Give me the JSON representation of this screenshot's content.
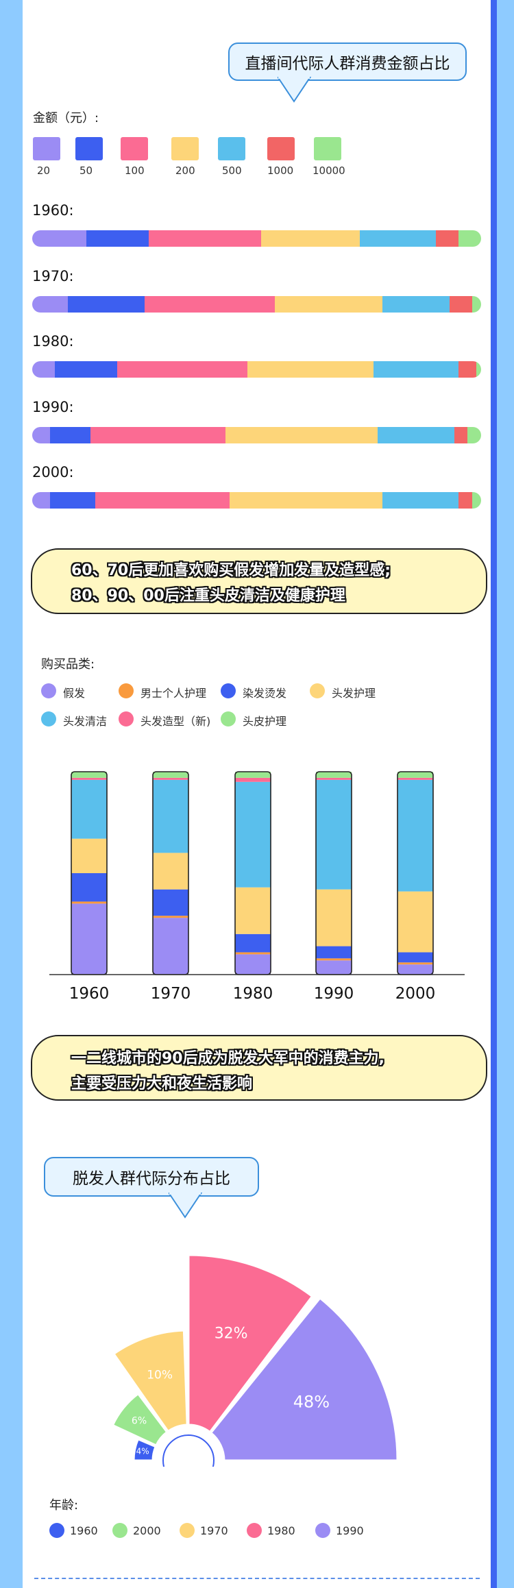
{
  "spend_section": {
    "title": "直播间代际人群消费金额占比",
    "legend_title": "金额（元）:",
    "legend": [
      {
        "label": "20",
        "color": "#9b8cf4"
      },
      {
        "label": "50",
        "color": "#3d5ff0"
      },
      {
        "label": "100",
        "color": "#fb6b93"
      },
      {
        "label": "200",
        "color": "#fdd579"
      },
      {
        "label": "500",
        "color": "#5abfec"
      },
      {
        "label": "1000",
        "color": "#f26565"
      },
      {
        "label": "10000",
        "color": "#9ae68f"
      }
    ]
  },
  "banner1": {
    "line1": "60、70后更加喜欢购买假发增加发量及造型感;",
    "line2": "80、90、00后注重头皮清洁及健康护理"
  },
  "category_section": {
    "legend_title": "购买品类:",
    "legend": [
      {
        "label": "假发",
        "color": "#9b8cf4"
      },
      {
        "label": "男士个人护理",
        "color": "#f99a3d"
      },
      {
        "label": "染发烫发",
        "color": "#3d5ff0"
      },
      {
        "label": "头发护理",
        "color": "#fdd579"
      },
      {
        "label": "头发清洁",
        "color": "#5abfec"
      },
      {
        "label": "头发造型（新)",
        "color": "#fb6b93"
      },
      {
        "label": "头皮护理",
        "color": "#9ae68f"
      }
    ]
  },
  "banner2": {
    "line1": "一二线城市的90后成为脱发大军中的消费主力,",
    "line2": "主要受压力大和夜生活影响"
  },
  "pie_section": {
    "title": "脱发人群代际分布占比",
    "legend_title": "年龄:",
    "legend": [
      {
        "label": "1960",
        "color": "#3d5ff0"
      },
      {
        "label": "2000",
        "color": "#9ae68f"
      },
      {
        "label": "1970",
        "color": "#fdd579"
      },
      {
        "label": "1980",
        "color": "#fb6b93"
      },
      {
        "label": "1990",
        "color": "#9b8cf4"
      }
    ]
  },
  "chart_data": [
    {
      "type": "bar",
      "orientation": "horizontal-stacked-100",
      "title": "直播间代际人群消费金额占比",
      "legend_title": "金额（元）",
      "categories": [
        "1960:",
        "1970:",
        "1980:",
        "1990:",
        "2000:"
      ],
      "series": [
        {
          "name": "20",
          "color": "#9b8cf4",
          "values": [
            12,
            8,
            5,
            4,
            4
          ]
        },
        {
          "name": "50",
          "color": "#3d5ff0",
          "values": [
            14,
            17,
            14,
            9,
            10
          ]
        },
        {
          "name": "100",
          "color": "#fb6b93",
          "values": [
            25,
            29,
            29,
            30,
            30
          ]
        },
        {
          "name": "200",
          "color": "#fdd579",
          "values": [
            22,
            24,
            28,
            34,
            34
          ]
        },
        {
          "name": "500",
          "color": "#5abfec",
          "values": [
            17,
            15,
            19,
            17,
            17
          ]
        },
        {
          "name": "1000",
          "color": "#f26565",
          "values": [
            5,
            5,
            4,
            3,
            3
          ]
        },
        {
          "name": "10000",
          "color": "#9ae68f",
          "values": [
            5,
            2,
            1,
            3,
            2
          ]
        }
      ]
    },
    {
      "type": "bar",
      "orientation": "vertical-stacked-100",
      "legend_title": "购买品类",
      "categories": [
        "1960",
        "1970",
        "1980",
        "1990",
        "2000"
      ],
      "series": [
        {
          "name": "假发",
          "color": "#9b8cf4",
          "values": [
            35,
            28,
            10,
            7,
            5
          ]
        },
        {
          "name": "男士个人护理",
          "color": "#f99a3d",
          "values": [
            1,
            1,
            1,
            1,
            1
          ]
        },
        {
          "name": "染发烫发",
          "color": "#3d5ff0",
          "values": [
            14,
            13,
            9,
            6,
            5
          ]
        },
        {
          "name": "头发护理",
          "color": "#fdd579",
          "values": [
            17,
            18,
            23,
            28,
            30
          ]
        },
        {
          "name": "头发清洁",
          "color": "#5abfec",
          "values": [
            29,
            36,
            52,
            54,
            55
          ]
        },
        {
          "name": "头发造型（新)",
          "color": "#fb6b93",
          "values": [
            1,
            1,
            2,
            1,
            1
          ]
        },
        {
          "name": "头皮护理",
          "color": "#9ae68f",
          "values": [
            3,
            3,
            3,
            3,
            3
          ]
        }
      ]
    },
    {
      "type": "pie",
      "variant": "rose-half",
      "title": "脱发人群代际分布占比",
      "legend_title": "年龄",
      "slices": [
        {
          "name": "1960",
          "value": 4,
          "label": "4%",
          "color": "#3d5ff0"
        },
        {
          "name": "2000",
          "value": 6,
          "label": "6%",
          "color": "#9ae68f"
        },
        {
          "name": "1970",
          "value": 10,
          "label": "10%",
          "color": "#fdd579"
        },
        {
          "name": "1980",
          "value": 32,
          "label": "32%",
          "color": "#fb6b93"
        },
        {
          "name": "1990",
          "value": 48,
          "label": "48%",
          "color": "#9b8cf4"
        }
      ]
    }
  ]
}
